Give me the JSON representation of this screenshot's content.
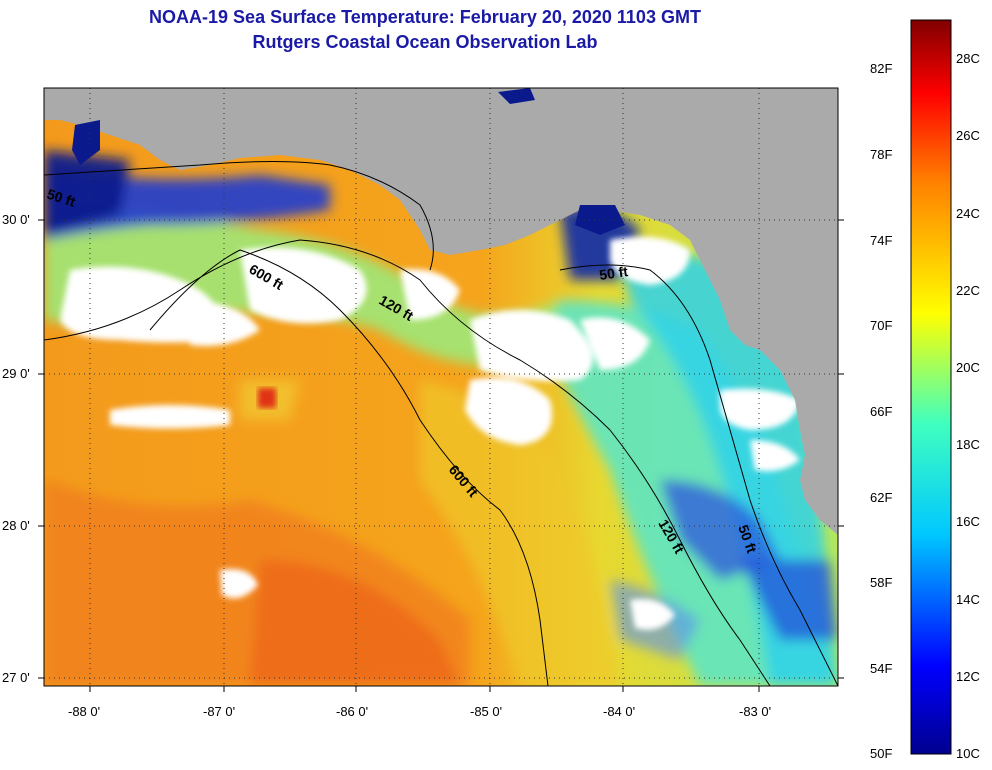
{
  "title": {
    "line1": "NOAA-19 Sea Surface Temperature:  February 20, 2020 1103 GMT",
    "line2": "Rutgers Coastal Ocean Observation Lab"
  },
  "map": {
    "latitude_labels": [
      "30 0'",
      "29 0'",
      "28 0'",
      "27 0'"
    ],
    "longitude_labels": [
      "-88 0'",
      "-87 0'",
      "-86 0'",
      "-85 0'",
      "-84 0'",
      "-83 0'"
    ],
    "isobath_labels": [
      "50 ft",
      "600 ft",
      "120 ft",
      "50 ft",
      "600 ft",
      "120 ft",
      "50 ft"
    ],
    "colors": {
      "land": "#aaaaaa",
      "cloud": "#ffffff",
      "warm": "#f6a21a",
      "cold": "#0a1a8c"
    }
  },
  "colorbar": {
    "fahrenheit_labels": [
      "82F",
      "78F",
      "74F",
      "70F",
      "66F",
      "62F",
      "58F",
      "54F",
      "50F"
    ],
    "celsius_labels": [
      "28C",
      "26C",
      "24C",
      "22C",
      "20C",
      "18C",
      "16C",
      "14C",
      "12C",
      "10C"
    ],
    "range_celsius": [
      10,
      29
    ]
  }
}
